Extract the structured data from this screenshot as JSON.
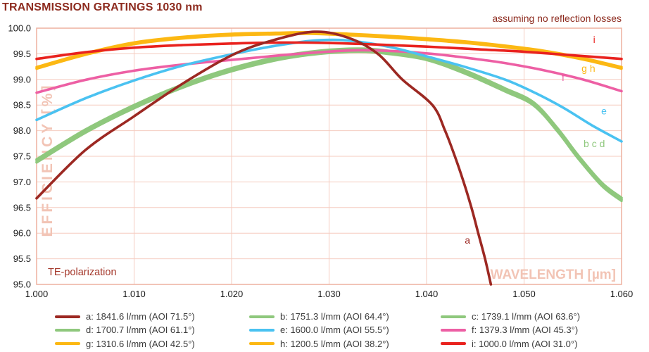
{
  "title": "TRANSMISSION GRATINGS 1030 nm",
  "annotation": "assuming no reflection losses",
  "chart_data": {
    "type": "line",
    "title": "TRANSMISSION GRATINGS 1030 nm",
    "subtitle": "assuming no reflection losses",
    "xlabel": "WAVELENGTH [µm]",
    "ylabel": "EFFICIENCY [%]",
    "note": "TE-polarization",
    "grid": true,
    "legend_position": "bottom",
    "xlim": [
      1.0,
      1.06
    ],
    "ylim": [
      95.0,
      100.0
    ],
    "x_ticks": [
      "1.000",
      "1.010",
      "1.020",
      "1.030",
      "1.040",
      "1.050",
      "1.060"
    ],
    "y_ticks": [
      "100.0",
      "99.5",
      "99.0",
      "98.5",
      "98.0",
      "97.5",
      "97.0",
      "96.5",
      "96.0",
      "95.5",
      "95.0"
    ],
    "colors": {
      "grid": "#F5CBBF",
      "frame": "#EDB19F",
      "pale_axis_label": "#F2C4B5",
      "dark_red_text": "#8D2B1F",
      "note_text": "#A4372A",
      "tick_text": "#1b1b1b"
    },
    "series": [
      {
        "id": "a",
        "legend_label": "a: 1841.6 l/mm (AOI 71.5°)",
        "lines_per_mm": 1841.6,
        "aoi_deg": 71.5,
        "color": "#9C2822",
        "z": 9,
        "points": [
          [
            1.0,
            96.68
          ],
          [
            1.005,
            97.62
          ],
          [
            1.01,
            98.28
          ],
          [
            1.015,
            98.92
          ],
          [
            1.02,
            99.47
          ],
          [
            1.024,
            99.75
          ],
          [
            1.0285,
            99.93
          ],
          [
            1.032,
            99.81
          ],
          [
            1.035,
            99.5
          ],
          [
            1.0375,
            99.0
          ],
          [
            1.0406,
            98.5
          ],
          [
            1.0419,
            98.0
          ],
          [
            1.0429,
            97.5
          ],
          [
            1.0438,
            97.0
          ],
          [
            1.0446,
            96.5
          ],
          [
            1.0453,
            96.0
          ],
          [
            1.046,
            95.5
          ],
          [
            1.0466,
            95.0
          ]
        ]
      },
      {
        "id": "b",
        "legend_label": "b: 1751.3 l/mm (AOI 64.4°)",
        "lines_per_mm": 1751.3,
        "aoi_deg": 64.4,
        "color": "#8FC87D",
        "z": 1,
        "points": [
          [
            1.0,
            97.44
          ],
          [
            1.005,
            98.02
          ],
          [
            1.01,
            98.5
          ],
          [
            1.015,
            98.9
          ],
          [
            1.02,
            99.22
          ],
          [
            1.025,
            99.45
          ],
          [
            1.029,
            99.56
          ],
          [
            1.033,
            99.6
          ],
          [
            1.036,
            99.56
          ],
          [
            1.04,
            99.44
          ],
          [
            1.044,
            99.17
          ],
          [
            1.048,
            98.83
          ],
          [
            1.051,
            98.55
          ],
          [
            1.0535,
            98.03
          ],
          [
            1.0555,
            97.53
          ],
          [
            1.058,
            96.98
          ],
          [
            1.06,
            96.69
          ]
        ]
      },
      {
        "id": "c",
        "legend_label": "c: 1739.1 l/mm (AOI 63.6°)",
        "lines_per_mm": 1739.1,
        "aoi_deg": 63.6,
        "color": "#8FC87D",
        "z": 2,
        "points": [
          [
            1.0,
            97.41
          ],
          [
            1.005,
            97.99
          ],
          [
            1.01,
            98.47
          ],
          [
            1.015,
            98.87
          ],
          [
            1.02,
            99.19
          ],
          [
            1.025,
            99.42
          ],
          [
            1.029,
            99.53
          ],
          [
            1.033,
            99.57
          ],
          [
            1.036,
            99.53
          ],
          [
            1.04,
            99.41
          ],
          [
            1.044,
            99.14
          ],
          [
            1.048,
            98.8
          ],
          [
            1.051,
            98.52
          ],
          [
            1.0535,
            98.0
          ],
          [
            1.0555,
            97.5
          ],
          [
            1.058,
            96.95
          ],
          [
            1.06,
            96.66
          ]
        ]
      },
      {
        "id": "d",
        "legend_label": "d: 1700.7 l/mm (AOI 61.1°)",
        "lines_per_mm": 1700.7,
        "aoi_deg": 61.1,
        "color": "#8FC87D",
        "z": 3,
        "points": [
          [
            1.0,
            97.38
          ],
          [
            1.005,
            97.96
          ],
          [
            1.01,
            98.44
          ],
          [
            1.015,
            98.84
          ],
          [
            1.02,
            99.16
          ],
          [
            1.025,
            99.39
          ],
          [
            1.029,
            99.5
          ],
          [
            1.033,
            99.54
          ],
          [
            1.036,
            99.5
          ],
          [
            1.04,
            99.38
          ],
          [
            1.044,
            99.11
          ],
          [
            1.048,
            98.77
          ],
          [
            1.051,
            98.49
          ],
          [
            1.0535,
            97.97
          ],
          [
            1.0555,
            97.47
          ],
          [
            1.058,
            96.92
          ],
          [
            1.06,
            96.63
          ]
        ]
      },
      {
        "id": "e",
        "legend_label": "e: 1600.0 l/mm (AOI 55.5°)",
        "lines_per_mm": 1600.0,
        "aoi_deg": 55.5,
        "color": "#4AC2F1",
        "z": 5,
        "points": [
          [
            1.0,
            98.21
          ],
          [
            1.005,
            98.63
          ],
          [
            1.01,
            98.98
          ],
          [
            1.015,
            99.27
          ],
          [
            1.02,
            99.49
          ],
          [
            1.024,
            99.64
          ],
          [
            1.028,
            99.75
          ],
          [
            1.031,
            99.77
          ],
          [
            1.034,
            99.71
          ],
          [
            1.037,
            99.6
          ],
          [
            1.04,
            99.45
          ],
          [
            1.044,
            99.24
          ],
          [
            1.048,
            99.0
          ],
          [
            1.051,
            98.75
          ],
          [
            1.054,
            98.45
          ],
          [
            1.057,
            98.1
          ],
          [
            1.06,
            97.79
          ]
        ]
      },
      {
        "id": "f",
        "legend_label": "f: 1379.3 l/mm (AOI 45.3°)",
        "lines_per_mm": 1379.3,
        "aoi_deg": 45.3,
        "color": "#ED5FA4",
        "z": 4,
        "points": [
          [
            1.0,
            98.74
          ],
          [
            1.005,
            98.99
          ],
          [
            1.01,
            99.17
          ],
          [
            1.015,
            99.29
          ],
          [
            1.02,
            99.38
          ],
          [
            1.025,
            99.47
          ],
          [
            1.029,
            99.53
          ],
          [
            1.033,
            99.57
          ],
          [
            1.037,
            99.55
          ],
          [
            1.041,
            99.49
          ],
          [
            1.045,
            99.4
          ],
          [
            1.048,
            99.32
          ],
          [
            1.052,
            99.18
          ],
          [
            1.056,
            99.0
          ],
          [
            1.06,
            98.77
          ]
        ]
      },
      {
        "id": "g",
        "legend_label": "g: 1310.6 l/mm (AOI 42.5°)",
        "lines_per_mm": 1310.6,
        "aoi_deg": 42.5,
        "color": "#FCB813",
        "z": 6,
        "points": [
          [
            1.0,
            99.24
          ],
          [
            1.005,
            99.51
          ],
          [
            1.01,
            99.72
          ],
          [
            1.015,
            99.83
          ],
          [
            1.02,
            99.89
          ],
          [
            1.0245,
            99.91
          ],
          [
            1.028,
            99.92
          ],
          [
            1.032,
            99.89
          ],
          [
            1.036,
            99.85
          ],
          [
            1.04,
            99.8
          ],
          [
            1.044,
            99.74
          ],
          [
            1.048,
            99.66
          ],
          [
            1.052,
            99.56
          ],
          [
            1.056,
            99.42
          ],
          [
            1.06,
            99.24
          ]
        ]
      },
      {
        "id": "h",
        "legend_label": "h: 1200.5 l/mm (AOI 38.2°)",
        "lines_per_mm": 1200.5,
        "aoi_deg": 38.2,
        "color": "#FCB813",
        "z": 7,
        "points": [
          [
            1.0,
            99.21
          ],
          [
            1.005,
            99.48
          ],
          [
            1.01,
            99.69
          ],
          [
            1.015,
            99.8
          ],
          [
            1.02,
            99.86
          ],
          [
            1.0245,
            99.88
          ],
          [
            1.028,
            99.89
          ],
          [
            1.032,
            99.86
          ],
          [
            1.036,
            99.82
          ],
          [
            1.04,
            99.77
          ],
          [
            1.044,
            99.71
          ],
          [
            1.048,
            99.63
          ],
          [
            1.052,
            99.53
          ],
          [
            1.056,
            99.39
          ],
          [
            1.06,
            99.21
          ]
        ]
      },
      {
        "id": "i",
        "legend_label": "i: 1000.0 l/mm (AOI 31.0°)",
        "lines_per_mm": 1000.0,
        "aoi_deg": 31.0,
        "color": "#E9221E",
        "z": 8,
        "points": [
          [
            1.0,
            99.4
          ],
          [
            1.005,
            99.53
          ],
          [
            1.01,
            99.62
          ],
          [
            1.015,
            99.67
          ],
          [
            1.02,
            99.7
          ],
          [
            1.025,
            99.72
          ],
          [
            1.03,
            99.71
          ],
          [
            1.035,
            99.68
          ],
          [
            1.04,
            99.64
          ],
          [
            1.045,
            99.59
          ],
          [
            1.05,
            99.54
          ],
          [
            1.055,
            99.47
          ],
          [
            1.06,
            99.4
          ]
        ]
      }
    ],
    "curve_labels": [
      {
        "text": "a",
        "x": 1.0442,
        "y": 95.8,
        "color": "#9C2822"
      },
      {
        "text": "b c d",
        "x": 1.0572,
        "y": 97.68,
        "color": "#8FC87D"
      },
      {
        "text": "e",
        "x": 1.0582,
        "y": 98.32,
        "color": "#4AC2F1"
      },
      {
        "text": "f",
        "x": 1.054,
        "y": 98.97,
        "color": "#ED5FA4"
      },
      {
        "text": "g h",
        "x": 1.0566,
        "y": 99.15,
        "color": "#FCB813"
      },
      {
        "text": "i",
        "x": 1.0572,
        "y": 99.71,
        "color": "#E9221E"
      }
    ]
  }
}
